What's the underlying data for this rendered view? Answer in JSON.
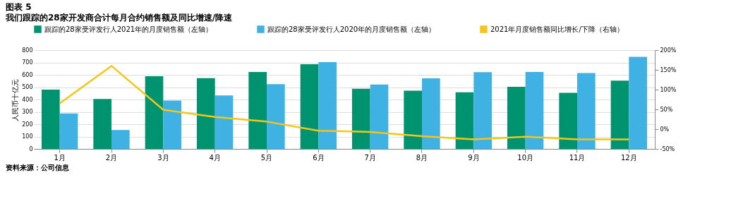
{
  "chart_data": {
    "type": "bar",
    "title": "图表 5",
    "subtitle": "我们跟踪的28家开发商合计每月合约销售额及同比增速/降速",
    "ylabel": "人民币十亿元",
    "categories": [
      "1月",
      "2月",
      "3月",
      "4月",
      "5月",
      "6月",
      "7月",
      "8月",
      "9月",
      "10月",
      "11月",
      "12月"
    ],
    "series": [
      {
        "name": "跟踪的28家受评发行人2021年的月度销售额（左轴）",
        "color": "#009370",
        "values": [
          480,
          405,
          588,
          573,
          623,
          686,
          487,
          472,
          458,
          503,
          454,
          553
        ]
      },
      {
        "name": "跟踪的28家受评发行人2020年的月度销售额（左轴）",
        "color": "#3fb1e3",
        "values": [
          287,
          153,
          392,
          433,
          525,
          703,
          522,
          571,
          621,
          623,
          615,
          746
        ]
      },
      {
        "name": "2021年月度销售额同比增长/下降（右轴）",
        "type": "line",
        "axis": "y2",
        "color": "#f5c518",
        "values": [
          65,
          160,
          49,
          31,
          19,
          -4,
          -7,
          -18,
          -26,
          -19,
          -26,
          -26
        ]
      }
    ],
    "ylim": [
      0,
      800
    ],
    "yticks": [
      0,
      100,
      200,
      300,
      400,
      500,
      600,
      700,
      800
    ],
    "y2lim": [
      -50,
      200
    ],
    "y2ticks": [
      {
        "value": -50,
        "label": "-50%"
      },
      {
        "value": 0,
        "label": "0%"
      },
      {
        "value": 50,
        "label": "50%"
      },
      {
        "value": 100,
        "label": "100%"
      },
      {
        "value": 150,
        "label": "150%"
      },
      {
        "value": 200,
        "label": "200%"
      }
    ],
    "grid": "y",
    "legend": "top",
    "annotations": [
      "资料来源：公司信息"
    ]
  }
}
